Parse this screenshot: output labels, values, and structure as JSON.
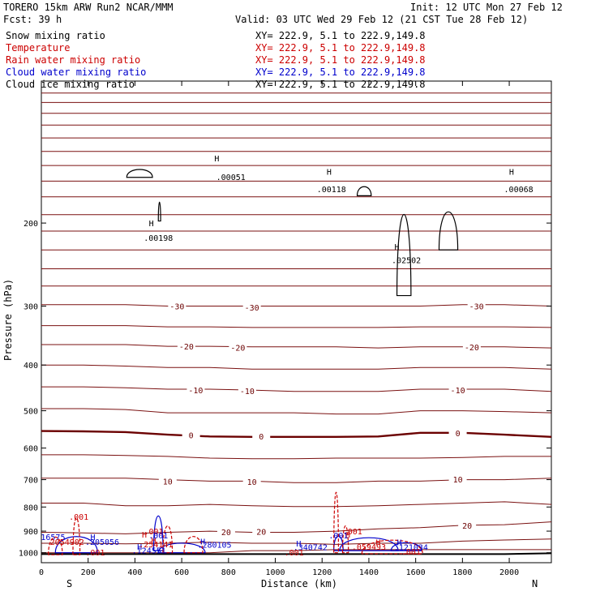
{
  "header": {
    "model": "TORERO  15km ARW    Run2    NCAR/MMM",
    "init": "Init: 12 UTC Mon 27 Feb 12",
    "fcst": "Fcst:    39 h",
    "valid": "Valid: 03 UTC Wed 29 Feb 12 (21 CST Tue 28 Feb 12)"
  },
  "legend": [
    {
      "label": "Snow mixing ratio",
      "xy": "XY= 222.9,  5.1 to 222.9,149.8",
      "color": "#000000"
    },
    {
      "label": "Temperature",
      "xy": "XY= 222.9,  5.1 to 222.9,149.8",
      "color": "#cc0000"
    },
    {
      "label": "Rain water mixing ratio",
      "xy": "XY= 222.9,  5.1 to 222.9,149.8",
      "color": "#cc0000"
    },
    {
      "label": "Cloud water mixing ratio",
      "xy": "XY= 222.9,  5.1 to 222.9,149.8",
      "color": "#0000cc"
    },
    {
      "label": "Cloud ice mixing ratio",
      "xy": "XY= 222.9,  5.1 to 222.9,149.8",
      "color": "#000000"
    }
  ],
  "colors": {
    "temperature": "#7a1010",
    "zero_isotherm": "#6b0000",
    "rain": "#cc0000",
    "cloud_water": "#0000cc",
    "snow": "#000000",
    "terrain": "#000000"
  },
  "chart_data": {
    "type": "contour",
    "xlabel": "Distance (km)",
    "ylabel": "Pressure (hPa)",
    "x_ticks": [
      0,
      200,
      400,
      600,
      800,
      1000,
      1200,
      1400,
      1600,
      1800,
      2000
    ],
    "y_ticks": [
      200,
      300,
      400,
      500,
      600,
      700,
      800,
      900,
      1000
    ],
    "xlim": [
      0,
      2180
    ],
    "ylim": [
      1050,
      100
    ],
    "y_scale": "log",
    "endpoint_labels": {
      "left": "S",
      "right": "N"
    },
    "temperature_contours": {
      "interval": 5,
      "labeled_levels": [
        -30,
        -20,
        -10,
        0,
        10,
        20
      ],
      "isotherms": [
        {
          "level": 30,
          "p": [
            1000,
            1000,
            1000,
            1000,
            1000,
            990,
            990,
            985,
            985,
            985,
            985,
            985,
            985
          ]
        },
        {
          "level": 25,
          "p": [
            955,
            955,
            958,
            955,
            950,
            955,
            955,
            960,
            955,
            955,
            945,
            940,
            935
          ]
        },
        {
          "level": 20,
          "p": [
            905,
            908,
            912,
            905,
            900,
            905,
            905,
            900,
            890,
            885,
            875,
            872,
            860
          ]
        },
        {
          "level": 15,
          "p": [
            785,
            785,
            795,
            795,
            790,
            795,
            798,
            798,
            795,
            790,
            785,
            780,
            790
          ]
        },
        {
          "level": 10,
          "p": [
            695,
            695,
            695,
            700,
            705,
            705,
            710,
            710,
            705,
            705,
            700,
            700,
            695
          ]
        },
        {
          "level": 5,
          "p": [
            620,
            620,
            622,
            625,
            630,
            632,
            632,
            630,
            630,
            630,
            628,
            625,
            625
          ]
        },
        {
          "level": 0,
          "p": [
            552,
            553,
            555,
            562,
            567,
            568,
            568,
            568,
            567,
            557,
            557,
            562,
            568
          ]
        },
        {
          "level": -5,
          "p": [
            495,
            495,
            497,
            505,
            505,
            505,
            505,
            508,
            508,
            500,
            500,
            502,
            505
          ]
        },
        {
          "level": -10,
          "p": [
            445,
            445,
            447,
            450,
            450,
            452,
            455,
            455,
            455,
            450,
            450,
            450,
            455
          ]
        },
        {
          "level": -15,
          "p": [
            400,
            400,
            402,
            405,
            405,
            408,
            408,
            408,
            408,
            405,
            405,
            405,
            408
          ]
        },
        {
          "level": -20,
          "p": [
            362,
            362,
            362,
            365,
            365,
            366,
            366,
            366,
            368,
            366,
            366,
            366,
            368
          ]
        },
        {
          "level": -25,
          "p": [
            330,
            330,
            330,
            332,
            332,
            333,
            333,
            333,
            333,
            332,
            332,
            332,
            333
          ]
        },
        {
          "level": -30,
          "p": [
            298,
            298,
            298,
            300,
            300,
            300,
            300,
            300,
            300,
            300,
            298,
            298,
            300
          ]
        },
        {
          "level": -35,
          "p": [
            272,
            272,
            272,
            272,
            272,
            272,
            272,
            272,
            272,
            272,
            272,
            272,
            272
          ]
        },
        {
          "level": -40,
          "p": [
            250,
            250,
            250,
            250,
            250,
            250,
            250,
            250,
            250,
            250,
            250,
            250,
            250
          ]
        },
        {
          "level": -45,
          "p": [
            228,
            228,
            228,
            228,
            228,
            228,
            228,
            228,
            228,
            228,
            228,
            228,
            228
          ]
        },
        {
          "level": -50,
          "p": [
            208,
            208,
            208,
            208,
            208,
            208,
            208,
            208,
            208,
            208,
            208,
            208,
            208
          ]
        },
        {
          "level": -55,
          "p": [
            192,
            192,
            192,
            192,
            192,
            192,
            192,
            192,
            192,
            192,
            192,
            192,
            192
          ]
        },
        {
          "level": -60,
          "p": [
            176,
            176,
            176,
            176,
            176,
            176,
            176,
            176,
            176,
            176,
            176,
            176,
            176
          ]
        },
        {
          "level": -65,
          "p": [
            163,
            163,
            163,
            163,
            163,
            163,
            163,
            163,
            163,
            163,
            163,
            163,
            163
          ]
        },
        {
          "level": -70,
          "p": [
            151,
            151,
            151,
            151,
            151,
            151,
            151,
            151,
            151,
            151,
            151,
            151,
            151
          ]
        },
        {
          "level": -75,
          "p": [
            141,
            141,
            141,
            141,
            141,
            141,
            141,
            141,
            141,
            141,
            141,
            141,
            141
          ]
        },
        {
          "level": -80,
          "p": [
            132,
            132,
            132,
            132,
            132,
            132,
            132,
            132,
            132,
            132,
            132,
            132,
            132
          ]
        },
        {
          "level": -85,
          "p": [
            124,
            124,
            124,
            124,
            124,
            124,
            124,
            124,
            124,
            124,
            124,
            124,
            124
          ]
        },
        {
          "level": -90,
          "p": [
            117,
            117,
            117,
            117,
            117,
            117,
            117,
            117,
            117,
            117,
            117,
            117,
            117
          ]
        },
        {
          "level": -95,
          "p": [
            111,
            111,
            111,
            111,
            111,
            111,
            111,
            111,
            111,
            111,
            111,
            111,
            111
          ]
        },
        {
          "level": -100,
          "p": [
            106,
            106,
            106,
            106,
            106,
            106,
            106,
            106,
            106,
            106,
            106,
            106,
            106
          ]
        }
      ],
      "x_nodes": [
        0,
        180,
        360,
        540,
        720,
        900,
        1080,
        1260,
        1440,
        1620,
        1800,
        1980,
        2180
      ],
      "labels": [
        {
          "text": "-30",
          "x": 580,
          "p": 300
        },
        {
          "text": "-30",
          "x": 900,
          "p": 302
        },
        {
          "text": "-30",
          "x": 1860,
          "p": 300
        },
        {
          "text": "-20",
          "x": 620,
          "p": 365
        },
        {
          "text": "-20",
          "x": 840,
          "p": 367
        },
        {
          "text": "-20",
          "x": 1840,
          "p": 366
        },
        {
          "text": "-10",
          "x": 660,
          "p": 452
        },
        {
          "text": "-10",
          "x": 880,
          "p": 454
        },
        {
          "text": "-10",
          "x": 1780,
          "p": 452
        },
        {
          "text": "0",
          "x": 640,
          "p": 563
        },
        {
          "text": "0",
          "x": 940,
          "p": 566
        },
        {
          "text": "0",
          "x": 1780,
          "p": 557
        },
        {
          "text": "10",
          "x": 540,
          "p": 705
        },
        {
          "text": "10",
          "x": 900,
          "p": 707
        },
        {
          "text": "10",
          "x": 1780,
          "p": 698
        },
        {
          "text": "20",
          "x": 790,
          "p": 903
        },
        {
          "text": "20",
          "x": 940,
          "p": 902
        },
        {
          "text": "20",
          "x": 1820,
          "p": 875
        }
      ]
    },
    "maxima_labels": [
      {
        "text": ".00051",
        "x": 810,
        "p": 162,
        "color": "#000000"
      },
      {
        "text": ".00118",
        "x": 1240,
        "p": 172,
        "color": "#000000"
      },
      {
        "text": ".00068",
        "x": 2040,
        "p": 172,
        "color": "#000000"
      },
      {
        "text": ".00198",
        "x": 500,
        "p": 218,
        "color": "#000000"
      },
      {
        "text": ".02502",
        "x": 1560,
        "p": 243,
        "color": "#000000"
      },
      {
        "text": "16575",
        "x": 50,
        "p": 940,
        "color": "#0000cc"
      },
      {
        "text": ".205056",
        "x": 260,
        "p": 963,
        "color": "#0000cc"
      },
      {
        "text": ".124551",
        "x": 460,
        "p": 1003,
        "color": "#0000cc"
      },
      {
        "text": ".280105",
        "x": 740,
        "p": 975,
        "color": "#0000cc"
      },
      {
        "text": ".340742",
        "x": 1150,
        "p": 987,
        "color": "#0000cc"
      },
      {
        "text": ".121034",
        "x": 1580,
        "p": 987,
        "color": "#0000cc"
      },
      {
        "text": "2054902",
        "x": 110,
        "p": 963,
        "color": "#cc0000"
      },
      {
        "text": ".254141",
        "x": 490,
        "p": 973,
        "color": "#cc0000"
      },
      {
        "text": ".059493",
        "x": 1400,
        "p": 985,
        "color": "#cc0000"
      },
      {
        "text": ".001",
        "x": 160,
        "p": 852,
        "color": "#cc0000"
      },
      {
        "text": ".001",
        "x": 480,
        "p": 915,
        "color": "#cc0000"
      },
      {
        "text": ".001",
        "x": 1330,
        "p": 915,
        "color": "#cc0000"
      },
      {
        "text": ".001",
        "x": 230,
        "p": 1013,
        "color": "#cc0000"
      },
      {
        "text": ".001",
        "x": 1080,
        "p": 1013,
        "color": "#cc0000"
      },
      {
        "text": ".001",
        "x": 1580,
        "p": 1010,
        "color": "#cc0000"
      },
      {
        "text": ".001",
        "x": 500,
        "p": 932,
        "color": "#0000cc"
      },
      {
        "text": ".001",
        "x": 1270,
        "p": 932,
        "color": "#0000cc"
      }
    ],
    "h_markers": [
      {
        "x": 750,
        "p": 148,
        "color": "#000000"
      },
      {
        "x": 1230,
        "p": 158,
        "color": "#000000"
      },
      {
        "x": 2010,
        "p": 158,
        "color": "#000000"
      },
      {
        "x": 470,
        "p": 203,
        "color": "#000000"
      },
      {
        "x": 1520,
        "p": 228,
        "color": "#000000"
      },
      {
        "x": 220,
        "p": 940,
        "color": "#0000cc"
      },
      {
        "x": 420,
        "p": 985,
        "color": "#0000cc"
      },
      {
        "x": 690,
        "p": 960,
        "color": "#0000cc"
      },
      {
        "x": 1100,
        "p": 970,
        "color": "#0000cc"
      },
      {
        "x": 1530,
        "p": 965,
        "color": "#0000cc"
      },
      {
        "x": 480,
        "p": 955,
        "color": "#cc0000"
      },
      {
        "x": 1440,
        "p": 965,
        "color": "#cc0000"
      },
      {
        "x": 440,
        "p": 928,
        "color": "#cc0000"
      },
      {
        "x": 1310,
        "p": 928,
        "color": "#cc0000"
      }
    ],
    "surface_pressure": [
      1007,
      1007,
      1007,
      1007,
      1007,
      1007,
      1007,
      1007,
      1007,
      1007,
      1007,
      1007,
      1003
    ]
  }
}
